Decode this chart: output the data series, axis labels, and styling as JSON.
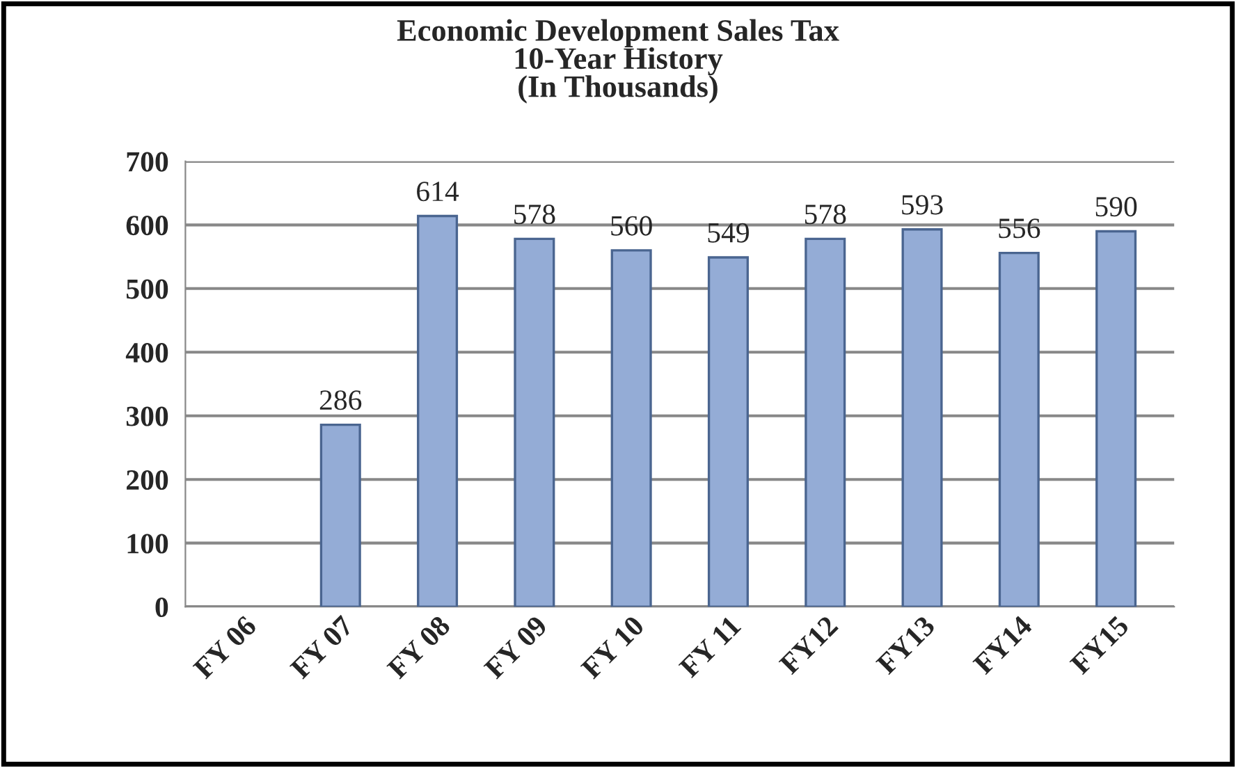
{
  "chart_data": {
    "type": "bar",
    "title": "Economic Development Sales Tax\n10-Year History\n(In Thousands)",
    "categories": [
      "FY 06",
      "FY 07",
      "FY 08",
      "FY 09",
      "FY 10",
      "FY 11",
      "FY12",
      "FY13",
      "FY14",
      "FY15"
    ],
    "values": [
      null,
      286,
      614,
      578,
      560,
      549,
      578,
      593,
      556,
      590
    ],
    "color": "#94acd6",
    "ylim": [
      0,
      700
    ],
    "yticks": [
      0,
      100,
      200,
      300,
      400,
      500,
      600,
      700
    ],
    "grid": "y",
    "data_labels": true
  }
}
